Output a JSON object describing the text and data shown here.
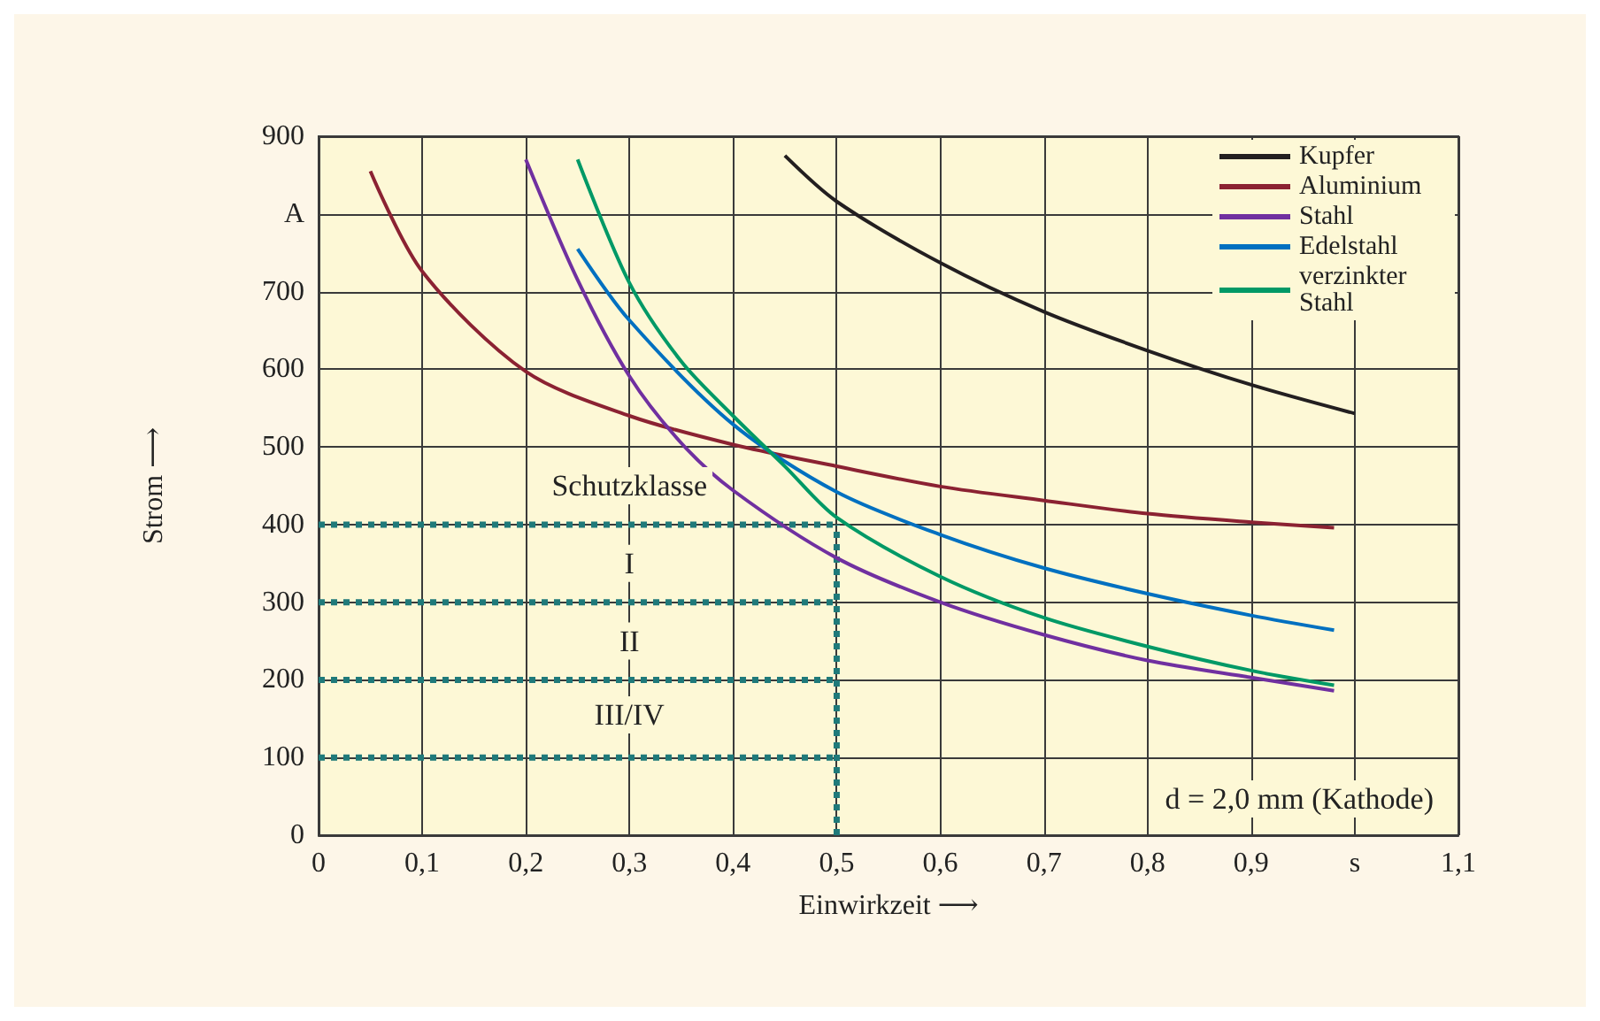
{
  "chart_data": {
    "type": "line",
    "xlabel": "Einwirkzeit ⟶",
    "ylabel": "Strom ⟶",
    "xlim": [
      0,
      1.1
    ],
    "ylim": [
      0,
      900
    ],
    "xticks": [
      0,
      {
        "value": 0.1,
        "label": "0,1"
      },
      {
        "value": 0.2,
        "label": "0,2"
      },
      {
        "value": 0.3,
        "label": "0,3"
      },
      {
        "value": 0.4,
        "label": "0,4"
      },
      {
        "value": 0.5,
        "label": "0,5"
      },
      {
        "value": 0.6,
        "label": "0,6"
      },
      {
        "value": 0.7,
        "label": "0,7"
      },
      {
        "value": 0.8,
        "label": "0,8"
      },
      {
        "value": 0.9,
        "label": "0,9"
      },
      {
        "value": 1.0,
        "label": "s"
      },
      {
        "value": 1.1,
        "label": "1,1"
      }
    ],
    "yticks": [
      0,
      100,
      200,
      300,
      400,
      500,
      600,
      700,
      {
        "value": 800,
        "label": "A"
      },
      900
    ],
    "grid": true,
    "legend": "top right",
    "marker": "none",
    "line_style": "solid",
    "series": [
      {
        "name": "Kupfer",
        "color": "#231f20",
        "x": [
          0.45,
          0.5,
          0.6,
          0.7,
          0.8,
          0.9,
          1.0
        ],
        "values": [
          875,
          816,
          737,
          674,
          624,
          580,
          543
        ]
      },
      {
        "name": "Aluminium",
        "color": "#8b2232",
        "x": [
          0.05,
          0.1,
          0.2,
          0.3,
          0.4,
          0.5,
          0.6,
          0.7,
          0.8,
          0.9,
          0.98
        ],
        "values": [
          855,
          726,
          597,
          540,
          503,
          475,
          449,
          431,
          414,
          403,
          396
        ]
      },
      {
        "name": "Stahl",
        "color": "#7030a0",
        "x": [
          0.2,
          0.25,
          0.3,
          0.35,
          0.4,
          0.5,
          0.6,
          0.7,
          0.8,
          0.9,
          0.98
        ],
        "values": [
          870,
          715,
          591,
          505,
          444,
          357,
          300,
          258,
          225,
          203,
          186
        ]
      },
      {
        "name": "Edelstahl",
        "color": "#0070c0",
        "x": [
          0.25,
          0.3,
          0.4,
          0.5,
          0.6,
          0.7,
          0.8,
          0.9,
          0.98
        ],
        "values": [
          755,
          663,
          529,
          442,
          387,
          344,
          311,
          283,
          264
        ]
      },
      {
        "name": "verzinkter Stahl",
        "color": "#009966",
        "x": [
          0.25,
          0.3,
          0.35,
          0.4,
          0.45,
          0.5,
          0.6,
          0.7,
          0.8,
          0.9,
          0.98
        ],
        "values": [
          870,
          711,
          610,
          540,
          475,
          409,
          333,
          280,
          243,
          212,
          193
        ]
      },
      {
        "color": "#1f7a7a",
        "line_style": "dotted",
        "x": [
          0,
          0.5
        ],
        "values": [
          400,
          400
        ]
      },
      {
        "color": "#1f7a7a",
        "line_style": "dotted",
        "x": [
          0,
          0.5
        ],
        "values": [
          300,
          300
        ]
      },
      {
        "color": "#1f7a7a",
        "line_style": "dotted",
        "x": [
          0,
          0.5
        ],
        "values": [
          200,
          200
        ]
      },
      {
        "color": "#1f7a7a",
        "line_style": "dotted",
        "x": [
          0,
          0.5
        ],
        "values": [
          100,
          100
        ]
      },
      {
        "color": "#1f7a7a",
        "line_style": "dotted",
        "x": [
          0.5,
          0.5
        ],
        "values": [
          0,
          400
        ]
      }
    ],
    "annotations": [
      "Schutzklasse",
      "I",
      "II",
      "III/IV",
      "d = 2,0 mm (Kathode)"
    ]
  }
}
